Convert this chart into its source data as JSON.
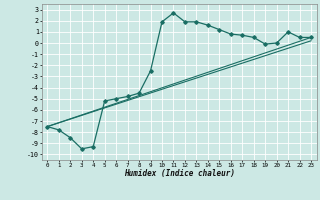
{
  "xlabel": "Humidex (Indice chaleur)",
  "background_color": "#cce8e4",
  "grid_color": "#ffffff",
  "line_color": "#1a6e64",
  "xlim": [
    -0.5,
    23.5
  ],
  "ylim": [
    -10.5,
    3.5
  ],
  "xticks": [
    0,
    1,
    2,
    3,
    4,
    5,
    6,
    7,
    8,
    9,
    10,
    11,
    12,
    13,
    14,
    15,
    16,
    17,
    18,
    19,
    20,
    21,
    22,
    23
  ],
  "yticks": [
    3,
    2,
    1,
    0,
    -1,
    -2,
    -3,
    -4,
    -5,
    -6,
    -7,
    -8,
    -9,
    -10
  ],
  "curve1_x": [
    0,
    1,
    2,
    3,
    4,
    5,
    6,
    7,
    8,
    9,
    10,
    11,
    12,
    13,
    14,
    15,
    16,
    17,
    18,
    19,
    20,
    21,
    22,
    23
  ],
  "curve1_y": [
    -7.5,
    -7.8,
    -8.5,
    -9.5,
    -9.3,
    -5.2,
    -5.0,
    -4.8,
    -4.5,
    -2.5,
    1.9,
    2.7,
    1.9,
    1.9,
    1.6,
    1.2,
    0.8,
    0.7,
    0.5,
    -0.1,
    0.0,
    1.0,
    0.5,
    0.5
  ],
  "line2_x": [
    0,
    23
  ],
  "line2_y": [
    -7.5,
    0.5
  ],
  "line3_x": [
    0,
    23
  ],
  "line3_y": [
    -7.5,
    0.2
  ]
}
